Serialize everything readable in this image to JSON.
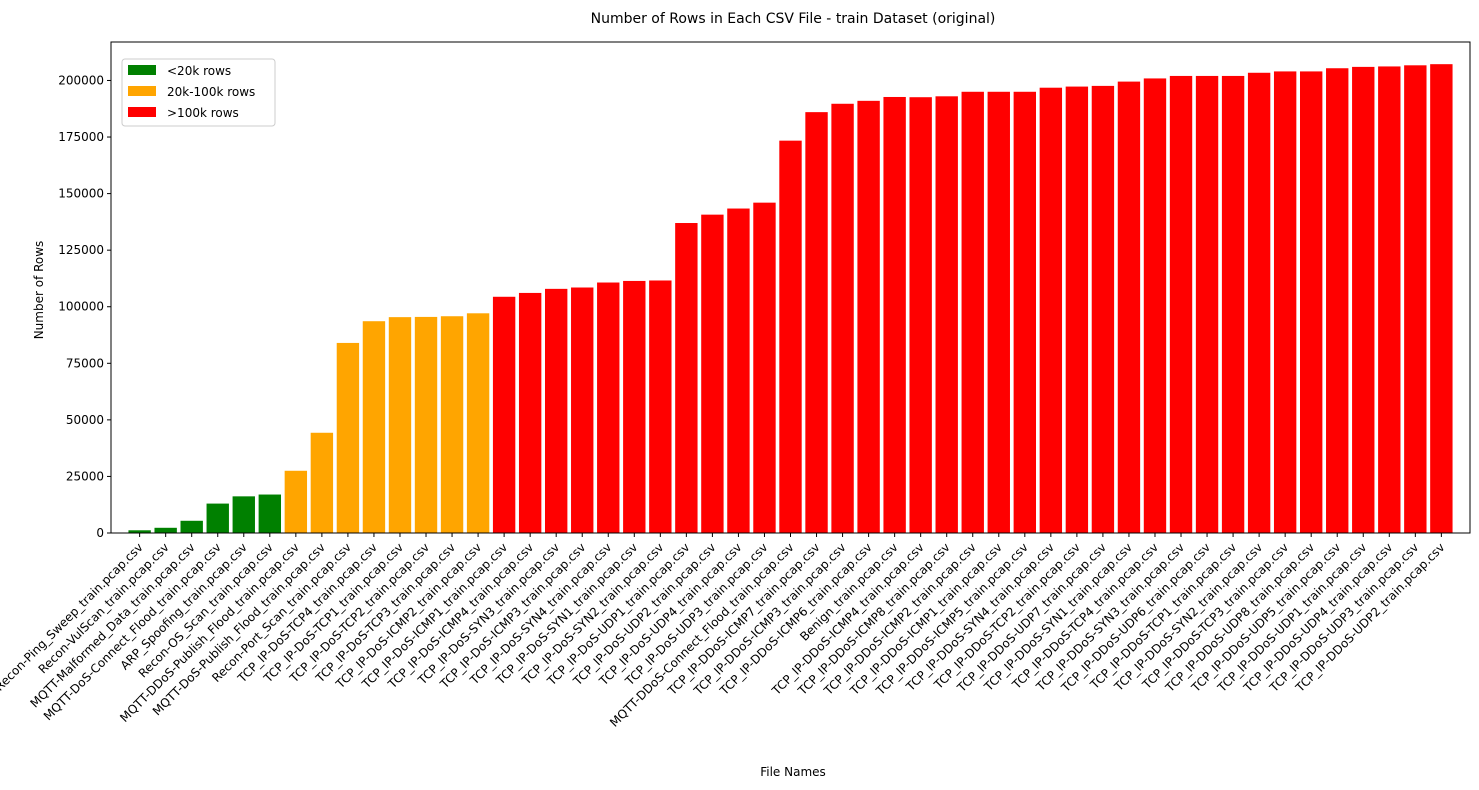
{
  "chart_data": {
    "type": "bar",
    "title": "Number of Rows in Each CSV File - train Dataset (original)",
    "xlabel": "File Names",
    "ylabel": "Number of Rows",
    "ylim": [
      0,
      217000
    ],
    "yticks": [
      0,
      25000,
      50000,
      75000,
      100000,
      125000,
      150000,
      175000,
      200000
    ],
    "grid": false,
    "legend_position": "top-left",
    "colors": {
      "low": "#008000",
      "mid": "#ffa500",
      "high": "#ff0000"
    },
    "legend": [
      {
        "label": "<20k rows",
        "color": "#008000"
      },
      {
        "label": "20k-100k rows",
        "color": "#ffa500"
      },
      {
        "label": ">100k rows",
        "color": "#ff0000"
      }
    ],
    "categories": [
      "Recon-Ping_Sweep_train.pcap.csv",
      "Recon-VulScan_train.pcap.csv",
      "MQTT-Malformed_Data_train.pcap.csv",
      "MQTT-DoS-Connect_Flood_train.pcap.csv",
      "ARP_Spoofing_train.pcap.csv",
      "Recon-OS_Scan_train.pcap.csv",
      "MQTT-DDoS-Publish_Flood_train.pcap.csv",
      "MQTT-DoS-Publish_Flood_train.pcap.csv",
      "Recon-Port_Scan_train.pcap.csv",
      "TCP_IP-DoS-TCP4_train.pcap.csv",
      "TCP_IP-DoS-TCP1_train.pcap.csv",
      "TCP_IP-DoS-TCP2_train.pcap.csv",
      "TCP_IP-DoS-TCP3_train.pcap.csv",
      "TCP_IP-DoS-ICMP2_train.pcap.csv",
      "TCP_IP-DoS-ICMP1_train.pcap.csv",
      "TCP_IP-DoS-ICMP4_train.pcap.csv",
      "TCP_IP-DoS-SYN3_train.pcap.csv",
      "TCP_IP-DoS-ICMP3_train.pcap.csv",
      "TCP_IP-DoS-SYN4_train.pcap.csv",
      "TCP_IP-DoS-SYN1_train.pcap.csv",
      "TCP_IP-DoS-SYN2_train.pcap.csv",
      "TCP_IP-DoS-UDP1_train.pcap.csv",
      "TCP_IP-DoS-UDP2_train.pcap.csv",
      "TCP_IP-DoS-UDP4_train.pcap.csv",
      "TCP_IP-DoS-UDP3_train.pcap.csv",
      "MQTT-DDoS-Connect_Flood_train.pcap.csv",
      "TCP_IP-DDoS-ICMP7_train.pcap.csv",
      "TCP_IP-DDoS-ICMP3_train.pcap.csv",
      "TCP_IP-DDoS-ICMP6_train.pcap.csv",
      "Benign_train.pcap.csv",
      "TCP_IP-DDoS-ICMP4_train.pcap.csv",
      "TCP_IP-DDoS-ICMP8_train.pcap.csv",
      "TCP_IP-DDoS-ICMP2_train.pcap.csv",
      "TCP_IP-DDoS-ICMP1_train.pcap.csv",
      "TCP_IP-DDoS-ICMP5_train.pcap.csv",
      "TCP_IP-DDoS-SYN4_train.pcap.csv",
      "TCP_IP-DDoS-TCP2_train.pcap.csv",
      "TCP_IP-DDoS-UDP7_train.pcap.csv",
      "TCP_IP-DDoS-SYN1_train.pcap.csv",
      "TCP_IP-DDoS-TCP4_train.pcap.csv",
      "TCP_IP-DDoS-SYN3_train.pcap.csv",
      "TCP_IP-DDoS-UDP6_train.pcap.csv",
      "TCP_IP-DDoS-TCP1_train.pcap.csv",
      "TCP_IP-DDoS-SYN2_train.pcap.csv",
      "TCP_IP-DDoS-TCP3_train.pcap.csv",
      "TCP_IP-DDoS-UDP8_train.pcap.csv",
      "TCP_IP-DDoS-UDP5_train.pcap.csv",
      "TCP_IP-DDoS-UDP1_train.pcap.csv",
      "TCP_IP-DDoS-UDP4_train.pcap.csv",
      "TCP_IP-DDoS-UDP3_train.pcap.csv",
      "TCP_IP-DDoS-UDP2_train.pcap.csv"
    ],
    "values": [
      1200,
      2300,
      5400,
      13000,
      16200,
      17000,
      27500,
      44300,
      84000,
      93600,
      95400,
      95500,
      95800,
      97100,
      104400,
      106100,
      107900,
      108500,
      110700,
      111400,
      111600,
      137000,
      140700,
      143400,
      146000,
      173400,
      186000,
      189700,
      191000,
      192700,
      192600,
      193000,
      195000,
      195000,
      195000,
      196800,
      197300,
      197600,
      199500,
      200900,
      202000,
      202000,
      202000,
      203400,
      204000,
      204000,
      205400,
      206000,
      206200,
      206700,
      207200
    ]
  }
}
